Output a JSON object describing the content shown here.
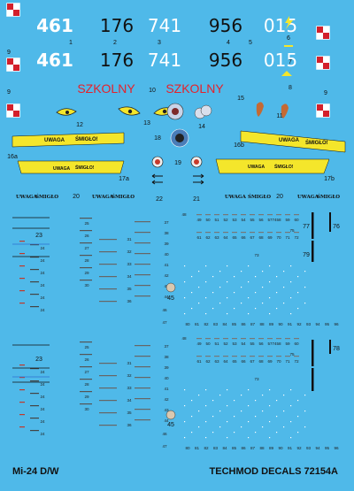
{
  "colors": {
    "background": "#4fb9e9",
    "checker_red": "#d3202b",
    "warning_yellow": "#f4e62b",
    "school_red": "#e5222b"
  },
  "tail_numbers": [
    "461",
    "176",
    "741",
    "956",
    "015"
  ],
  "school_text": "SZKOLNY",
  "warning": {
    "uwaga": "UWAGA",
    "smiglo": "ŚMIGŁO!",
    "smiglo_plain": "ŚMIGŁO"
  },
  "labels": {
    "n1": "1",
    "n2": "2",
    "n3": "3",
    "n4": "4",
    "n5": "5",
    "n6": "6",
    "n7": "7",
    "n8": "8",
    "n9": "9",
    "n10": "10",
    "n11": "11",
    "n12": "12",
    "n13": "13",
    "n14": "14",
    "n15": "15",
    "n16a": "16a",
    "n16b": "16b",
    "n17a": "17a",
    "n17b": "17b",
    "n18": "18",
    "n19": "19",
    "n20": "20",
    "n21": "21",
    "n22": "22",
    "n23": "23",
    "n24": "24",
    "n25": "25",
    "n26": "26",
    "n27": "27",
    "n28": "28",
    "n29": "29",
    "n30": "30",
    "n31": "31",
    "n32": "32",
    "n33": "33",
    "n34": "34",
    "n35": "35",
    "n36": "36",
    "n37": "37",
    "n38": "38",
    "n39": "39",
    "n40": "40",
    "n41": "41",
    "n42": "42",
    "n43": "43",
    "n44": "44",
    "n45": "45",
    "n46": "46",
    "n47": "47",
    "n48": "48",
    "n49": "49",
    "n50": "50",
    "n51": "51",
    "n52": "52",
    "n53": "53",
    "n54": "54",
    "n55": "55",
    "n56": "56",
    "n57": "57",
    "n58": "58",
    "n59": "59",
    "n60": "60",
    "n61": "61",
    "n62": "62",
    "n63": "63",
    "n64": "64",
    "n65": "65",
    "n66": "66",
    "n67": "67",
    "n68": "68",
    "n69": "69",
    "n70": "70",
    "n71": "71",
    "n72": "72",
    "n73": "73",
    "n74": "74",
    "n75": "75",
    "n76": "76",
    "n77": "77",
    "n78": "78",
    "n79": "79",
    "n80": "80",
    "n81": "81",
    "n82": "82",
    "n83": "83",
    "n84": "84",
    "n85": "85",
    "n86": "86",
    "n87": "87",
    "n88": "88",
    "n89": "89",
    "n90": "90",
    "n91": "91",
    "n92": "92",
    "n93": "93",
    "n94": "94",
    "n95": "95",
    "n96": "96"
  },
  "footer": {
    "model": "Mi-24 D/W",
    "brand": "TECHMOD DECALS 72154A"
  }
}
